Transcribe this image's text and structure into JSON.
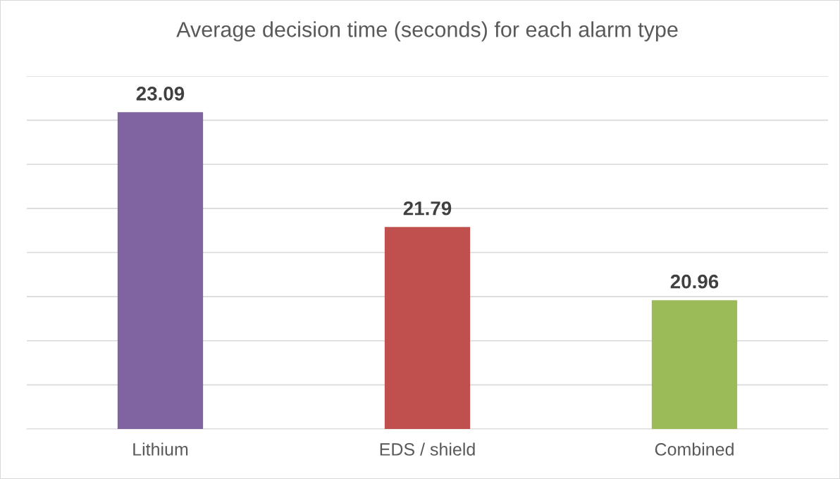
{
  "chart_data": {
    "type": "bar",
    "title": "Average decision time (seconds) for each alarm type",
    "categories": [
      "Lithium",
      "EDS / shield",
      "Combined"
    ],
    "values": [
      23.09,
      21.79,
      20.96
    ],
    "colors": [
      "#8064a2",
      "#c0504d",
      "#9bbb59"
    ],
    "ylim": [
      19.5,
      23.5
    ],
    "yticks": [
      {
        "value": 19.5,
        "label": null
      },
      {
        "value": 20,
        "label": null
      },
      {
        "value": 20.5,
        "label": null
      },
      {
        "value": 21,
        "label": null
      },
      {
        "value": 21.5,
        "label": null
      },
      {
        "value": 22,
        "label": null
      },
      {
        "value": 22.5,
        "label": null
      },
      {
        "value": 23,
        "label": null
      },
      {
        "value": 23.5,
        "label": null
      }
    ],
    "tick_labels": "x",
    "grid": "y",
    "data_labels": true
  }
}
